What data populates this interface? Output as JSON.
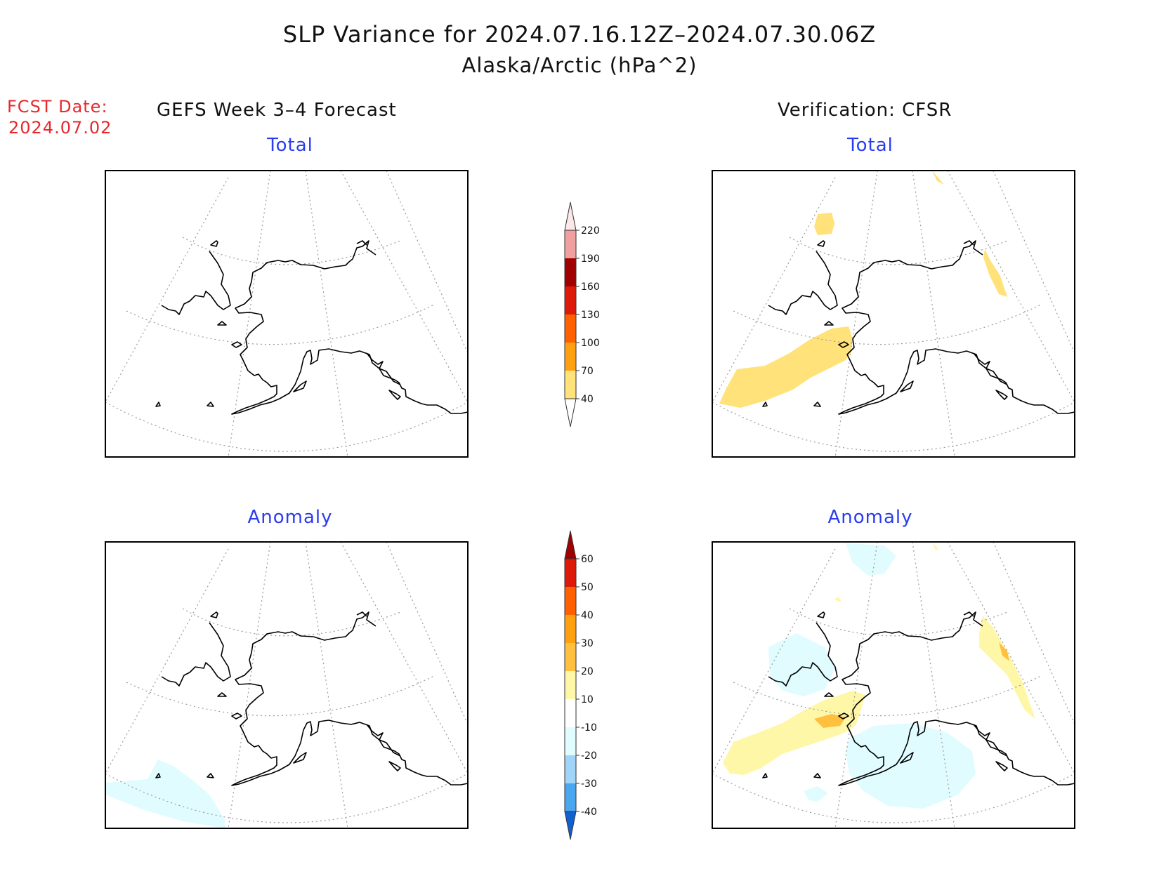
{
  "title": "SLP Variance for 2024.07.16.12Z–2024.07.30.06Z",
  "subtitle": "Alaska/Arctic (hPa^2)",
  "fcst_date_label": "FCST Date:",
  "fcst_date_value": "2024.07.02",
  "left_header": "GEFS Week 3–4 Forecast",
  "right_header": "Verification: CFSR",
  "panels": [
    {
      "title": "Total"
    },
    {
      "title": "Total"
    },
    {
      "title": "Anomaly"
    },
    {
      "title": "Anomaly"
    }
  ],
  "colorbar_total": {
    "labels": [
      "220",
      "190",
      "160",
      "130",
      "100",
      "70",
      "40"
    ],
    "colors": [
      "#fde8e8",
      "#f0a0a0",
      "#a00000",
      "#dd1a0a",
      "#ff6000",
      "#ffa010",
      "#ffe27a"
    ]
  },
  "colorbar_anomaly": {
    "labels": [
      "60",
      "50",
      "40",
      "30",
      "20",
      "10",
      "-10",
      "-20",
      "-30",
      "-40"
    ],
    "colors": [
      "#a00000",
      "#dd1a0a",
      "#ff6000",
      "#ffa010",
      "#ffc040",
      "#fff7a8",
      "#ffffff",
      "#e0fcff",
      "#a0d4f8",
      "#4aa6ee",
      "#1a6ee0",
      "#1060d0"
    ]
  },
  "colors": {
    "title": "#111111",
    "fcst": "#e8282e",
    "panel_title": "#2a3cf0"
  }
}
